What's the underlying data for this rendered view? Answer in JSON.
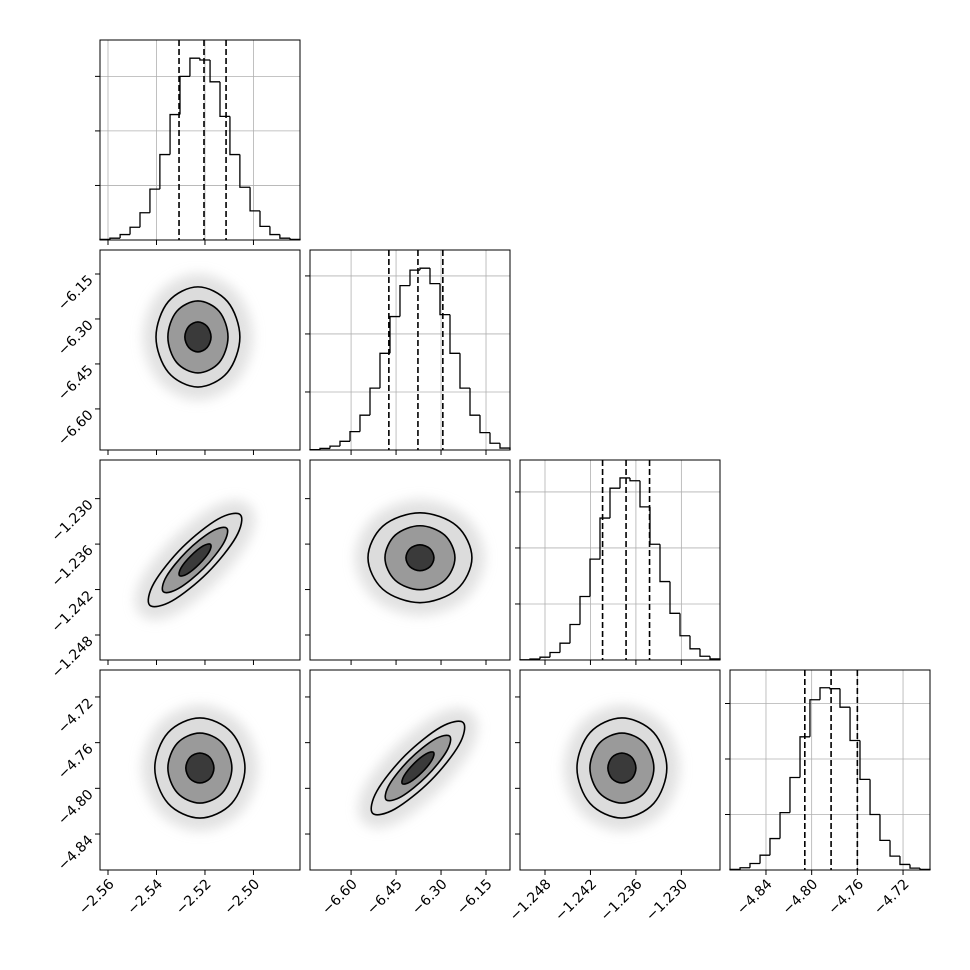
{
  "chart_data": {
    "type": "corner",
    "grid": true,
    "parameters": [
      {
        "xlim": [
          -2.5633,
          -2.4808
        ],
        "xticks": [
          {
            "value": -2.56,
            "label": "−2.56"
          },
          {
            "value": -2.54,
            "label": "−2.54"
          },
          {
            "value": -2.52,
            "label": "−2.52"
          },
          {
            "value": -2.5,
            "label": "−2.50"
          }
        ],
        "bins": [
          -2.5633,
          -2.5592,
          -2.555,
          -2.5509,
          -2.5468,
          -2.5427,
          -2.5386,
          -2.5344,
          -2.5303,
          -2.5262,
          -2.5221,
          -2.5179,
          -2.5138,
          -2.5097,
          -2.5056,
          -2.5014,
          -2.4973,
          -2.4932,
          -2.4891,
          -2.4849,
          -2.4808
        ],
        "counts": [
          3,
          10,
          30,
          70,
          150,
          280,
          470,
          690,
          900,
          1000,
          990,
          870,
          680,
          470,
          290,
          160,
          75,
          30,
          10,
          3
        ],
        "ylim": [
          0,
          1100
        ],
        "yticks": [
          300,
          600,
          900
        ],
        "quantiles": [
          -2.5307,
          -2.5204,
          -2.5113
        ]
      },
      {
        "xlim": [
          -6.737,
          -6.07
        ],
        "xticks": [
          {
            "value": -6.6,
            "label": "−6.60"
          },
          {
            "value": -6.45,
            "label": "−6.45"
          },
          {
            "value": -6.3,
            "label": "−6.30"
          },
          {
            "value": -6.15,
            "label": "−6.15"
          }
        ],
        "bins": [
          -6.737,
          -6.7037,
          -6.6703,
          -6.637,
          -6.6036,
          -6.5703,
          -6.5369,
          -6.5036,
          -6.4702,
          -6.4369,
          -6.4035,
          -6.3702,
          -6.3368,
          -6.3035,
          -6.2701,
          -6.2368,
          -6.2034,
          -6.1701,
          -6.1367,
          -6.1034,
          -6.07
        ],
        "counts": [
          2,
          8,
          20,
          45,
          95,
          180,
          320,
          500,
          690,
          850,
          930,
          940,
          860,
          700,
          500,
          320,
          180,
          90,
          35,
          10
        ],
        "ylim": [
          0,
          1034
        ],
        "yticks": [
          300,
          600,
          900
        ],
        "quantiles": [
          -6.474,
          -6.377,
          -6.294
        ]
      },
      {
        "xlim": [
          -1.2513,
          -1.2249
        ],
        "xticks": [
          {
            "value": -1.248,
            "label": "−1.248"
          },
          {
            "value": -1.242,
            "label": "−1.242"
          },
          {
            "value": -1.236,
            "label": "−1.236"
          },
          {
            "value": -1.23,
            "label": "−1.230"
          }
        ],
        "bins": [
          -1.2513,
          -1.24998,
          -1.24866,
          -1.24734,
          -1.24602,
          -1.2447,
          -1.24338,
          -1.24206,
          -1.24074,
          -1.23942,
          -1.2381,
          -1.23678,
          -1.23546,
          -1.23414,
          -1.23282,
          -1.2315,
          -1.23018,
          -1.22886,
          -1.22754,
          -1.22622,
          -1.2249
        ],
        "counts": [
          1,
          5,
          15,
          40,
          90,
          190,
          340,
          540,
          760,
          920,
          975,
          960,
          820,
          620,
          420,
          250,
          130,
          60,
          20,
          6
        ],
        "ylim": [
          0,
          1071
        ],
        "yticks": [
          300,
          600,
          900
        ],
        "quantiles": [
          -1.2404,
          -1.2373,
          -1.2342
        ]
      },
      {
        "xlim": [
          -4.8715,
          -4.6964
        ],
        "xticks": [
          {
            "value": -4.84,
            "label": "−4.84"
          },
          {
            "value": -4.8,
            "label": "−4.80"
          },
          {
            "value": -4.76,
            "label": "−4.76"
          },
          {
            "value": -4.72,
            "label": "−4.72"
          }
        ],
        "bins": [
          -4.8715,
          -4.8627,
          -4.854,
          -4.8452,
          -4.8365,
          -4.8277,
          -4.819,
          -4.8102,
          -4.8015,
          -4.7927,
          -4.784,
          -4.7752,
          -4.7664,
          -4.7577,
          -4.7489,
          -4.7402,
          -4.7314,
          -4.7227,
          -4.7139,
          -4.7052,
          -4.6964
        ],
        "counts": [
          3,
          12,
          35,
          80,
          170,
          310,
          500,
          720,
          920,
          985,
          980,
          880,
          700,
          490,
          300,
          160,
          75,
          30,
          10,
          3
        ],
        "ylim": [
          0,
          1081
        ],
        "yticks": [
          300,
          600,
          900
        ],
        "quantiles": [
          -4.806,
          -4.783,
          -4.76
        ]
      }
    ],
    "pairs": [
      [
        {
          "contours": [
            {
              "x": [
                -2.5056,
                -2.5107,
                -2.5229,
                -2.5351,
                -2.5402,
                -2.5351,
                -2.5229,
                -2.5107
              ],
              "y": [
                -6.36,
                -6.242,
                -6.193,
                -6.242,
                -6.36,
                -6.478,
                -6.527,
                -6.478
              ]
            },
            {
              "x": [
                -2.5105,
                -2.5141,
                -2.5229,
                -2.5317,
                -2.5353,
                -2.5317,
                -2.5229,
                -2.5141
              ],
              "y": [
                -6.36,
                -6.275,
                -6.24,
                -6.275,
                -6.36,
                -6.445,
                -6.48,
                -6.445
              ]
            },
            {
              "x": [
                -2.5175,
                -2.5191,
                -2.5229,
                -2.5267,
                -2.5283,
                -2.5267,
                -2.5229,
                -2.5191
              ],
              "y": [
                -6.36,
                -6.325,
                -6.31,
                -6.325,
                -6.36,
                -6.395,
                -6.41,
                -6.395
              ]
            }
          ]
        }
      ],
      [
        {
          "contours": [
            {
              "x": [
                -2.5054,
                -2.5072,
                -2.5189,
                -2.5336,
                -2.5428,
                -2.541,
                -2.5293,
                -2.5146
              ],
              "y": [
                -1.23213,
                -1.23507,
                -1.23977,
                -1.24351,
                -1.24407,
                -1.24113,
                -1.23643,
                -1.23269
              ]
            },
            {
              "x": [
                -2.511,
                -2.5124,
                -2.5206,
                -2.5309,
                -2.5372,
                -2.5359,
                -2.5276,
                -2.5173
              ],
              "y": [
                -1.23391,
                -1.23592,
                -1.23922,
                -1.24186,
                -1.24229,
                -1.24028,
                -1.23698,
                -1.23434
              ]
            },
            {
              "x": [
                -2.5177,
                -2.5183,
                -2.5224,
                -2.5274,
                -2.5305,
                -2.5299,
                -2.5258,
                -2.5208
              ],
              "y": [
                -1.23604,
                -1.23704,
                -1.23865,
                -1.23995,
                -1.24016,
                -1.23916,
                -1.23755,
                -1.23625
              ]
            }
          ]
        },
        {
          "contours": [
            {
              "x": [
                -6.197,
                -6.2477,
                -6.3703,
                -6.4929,
                -6.5436,
                -6.4929,
                -6.3703,
                -6.2477
              ],
              "y": [
                -1.2378,
                -1.2336,
                -1.23187,
                -1.2336,
                -1.2378,
                -1.242,
                -1.24373,
                -1.242
              ]
            },
            {
              "x": [
                -6.2536,
                -6.2878,
                -6.3703,
                -6.4528,
                -6.487,
                -6.4528,
                -6.3703,
                -6.2878
              ],
              "y": [
                -1.2378,
                -1.23482,
                -1.23358,
                -1.23482,
                -1.2378,
                -1.24078,
                -1.24202,
                -1.24078
              ]
            },
            {
              "x": [
                -6.3236,
                -6.3373,
                -6.3703,
                -6.4033,
                -6.417,
                -6.4033,
                -6.3703,
                -6.3373
              ],
              "y": [
                -1.2378,
                -1.23659,
                -1.23609,
                -1.23659,
                -1.2378,
                -1.23901,
                -1.23951,
                -1.23901
              ]
            }
          ]
        }
      ],
      [
        {
          "contours": [
            {
              "x": [
                -2.5035,
                -2.509,
                -2.5221,
                -2.5352,
                -2.5407,
                -2.5352,
                -2.5221,
                -2.509
              ],
              "y": [
                -4.7822,
                -4.7512,
                -4.7384,
                -4.7512,
                -4.7822,
                -4.8132,
                -4.826,
                -4.8132
              ]
            },
            {
              "x": [
                -2.5089,
                -2.5128,
                -2.5221,
                -2.5314,
                -2.5353,
                -2.5314,
                -2.5221,
                -2.5128
              ],
              "y": [
                -4.7822,
                -4.7605,
                -4.7516,
                -4.7605,
                -4.7822,
                -4.8039,
                -4.8129,
                -4.8039
              ]
            },
            {
              "x": [
                -2.5163,
                -2.518,
                -2.5221,
                -2.5262,
                -2.5279,
                -2.5262,
                -2.5221,
                -2.518
              ],
              "y": [
                -4.7822,
                -4.7729,
                -4.7691,
                -4.7729,
                -4.7822,
                -4.7915,
                -4.7953,
                -4.7915
              ]
            }
          ]
        },
        {
          "contours": [
            {
              "x": [
                -6.226,
                -6.2403,
                -6.3347,
                -6.4537,
                -6.528,
                -6.5137,
                -6.4193,
                -6.3003
              ],
              "y": [
                -4.7425,
                -4.7621,
                -4.7933,
                -4.8181,
                -4.8219,
                -4.8023,
                -4.7711,
                -4.7463
              ]
            },
            {
              "x": [
                -6.271,
                -6.282,
                -6.3487,
                -6.432,
                -6.483,
                -6.472,
                -6.4053,
                -6.322
              ],
              "y": [
                -4.7544,
                -4.7678,
                -4.7896,
                -4.8072,
                -4.81,
                -4.7966,
                -4.7748,
                -4.7572
              ]
            },
            {
              "x": [
                -6.325,
                -6.3303,
                -6.363,
                -6.4037,
                -6.429,
                -6.4237,
                -6.391,
                -6.3503
              ],
              "y": [
                -4.7685,
                -4.7752,
                -4.7859,
                -4.7945,
                -4.7959,
                -4.7892,
                -4.7785,
                -4.7699
              ]
            }
          ]
        },
        {
          "contours": [
            {
              "x": [
                -1.23192,
                -1.23365,
                -1.23785,
                -1.24205,
                -1.24378,
                -1.24205,
                -1.23785,
                -1.23365
              ],
              "y": [
                -4.7822,
                -4.7512,
                -4.7384,
                -4.7512,
                -4.7822,
                -4.8132,
                -4.826,
                -4.8132
              ]
            },
            {
              "x": [
                -1.23363,
                -1.23487,
                -1.23785,
                -1.24083,
                -1.24207,
                -1.24083,
                -1.23785,
                -1.23487
              ],
              "y": [
                -4.7822,
                -4.7605,
                -4.7516,
                -4.7605,
                -4.7822,
                -4.8039,
                -4.8129,
                -4.8039
              ]
            },
            {
              "x": [
                -1.236,
                -1.23654,
                -1.23785,
                -1.23916,
                -1.2397,
                -1.23916,
                -1.23785,
                -1.23654
              ],
              "y": [
                -4.7822,
                -4.7729,
                -4.7691,
                -4.7729,
                -4.7822,
                -4.7915,
                -4.7953,
                -4.7915
              ]
            }
          ]
        }
      ]
    ]
  }
}
